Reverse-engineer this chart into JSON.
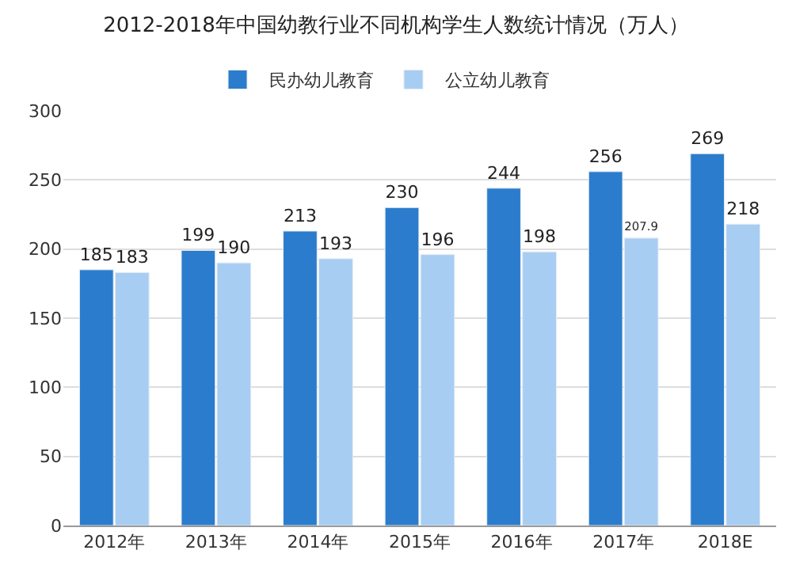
{
  "chart_data": {
    "type": "bar",
    "title": "2012-2018年中国幼教行业不同机构学生人数统计情况（万人）",
    "categories": [
      "2012年",
      "2013年",
      "2014年",
      "2015年",
      "2016年",
      "2017年",
      "2018E"
    ],
    "series": [
      {
        "name": "民办幼儿教育",
        "color": "#2b7ccc",
        "values": [
          185,
          199,
          213,
          230,
          244,
          256,
          269
        ]
      },
      {
        "name": "公立幼儿教育",
        "color": "#a8cdf2",
        "values": [
          183,
          190,
          193,
          196,
          198,
          207.9,
          218
        ]
      }
    ],
    "ylim": [
      0,
      300
    ],
    "yticks": [
      0,
      50,
      100,
      150,
      200,
      250,
      300
    ],
    "grid": "y",
    "legend": "top",
    "data_labels": true
  }
}
